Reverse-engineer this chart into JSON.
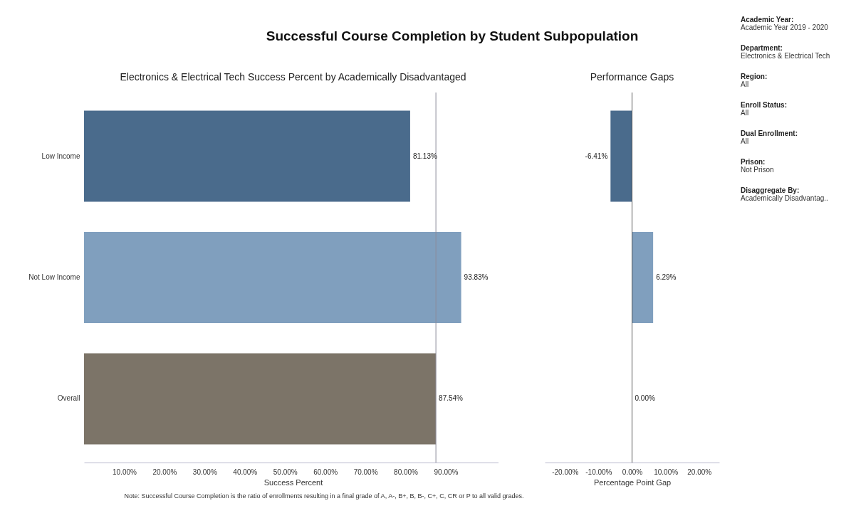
{
  "chart_data": [
    {
      "type": "other",
      "title": "Successful Course Completion by Student Subpopulation",
      "annotations": [
        "Academic Year:",
        "Academic Year 2019 - 2020",
        "Department:",
        "Electronics & Electrical Tech",
        "Region:",
        "All",
        "Enroll Status:",
        "All",
        "Dual Enrollment:",
        "All",
        "Prison:",
        "Not Prison",
        "Disaggregate By:",
        "Academically Disadvantag.."
      ]
    },
    {
      "type": "bar",
      "orientation": "horizontal",
      "title": "Electronics & Electrical Tech Success Percent by Academically Disadvantaged",
      "xlabel": "Success Percent",
      "categories": [
        "Low Income",
        "Not Low Income",
        "Overall"
      ],
      "values": [
        81.13,
        93.83,
        87.54
      ],
      "colors": [
        "#4a6b8c",
        "#809fbe",
        "#7c7468"
      ],
      "value_labels": [
        "81.13%",
        "93.83%",
        "87.54%"
      ],
      "xlim": [
        0,
        104
      ],
      "xticks": [
        {
          "value": 10,
          "label": "10.00%"
        },
        {
          "value": 20,
          "label": "20.00%"
        },
        {
          "value": 30,
          "label": "30.00%"
        },
        {
          "value": 40,
          "label": "40.00%"
        },
        {
          "value": 50,
          "label": "50.00%"
        },
        {
          "value": 60,
          "label": "60.00%"
        },
        {
          "value": 70,
          "label": "70.00%"
        },
        {
          "value": 80,
          "label": "80.00%"
        },
        {
          "value": 90,
          "label": "90.00%"
        }
      ],
      "ref_lines": [
        {
          "axis": "x",
          "value": 87.54,
          "color": "#8a8a99"
        }
      ],
      "annotations": [
        "Note: Successful Course Completion is the ratio of enrollments resulting in a final grade of A, A-, B+, B, B-, C+, C, CR or P to all valid grades."
      ]
    },
    {
      "type": "bar",
      "orientation": "horizontal",
      "title": "Performance Gaps",
      "xlabel": "Percentage Point Gap",
      "categories": [
        null,
        null,
        null
      ],
      "values": [
        -6.41,
        6.29,
        0
      ],
      "colors": [
        "#4a6b8c",
        "#809fbe",
        "#7c7468"
      ],
      "value_labels": [
        "-6.41%",
        "6.29%",
        "0.00%"
      ],
      "xlim": [
        -26,
        26
      ],
      "xticks": [
        {
          "value": -20,
          "label": "-20.00%"
        },
        {
          "value": -10,
          "label": "-10.00%"
        },
        {
          "value": 0,
          "label": "0.00%"
        },
        {
          "value": 10,
          "label": "10.00%"
        },
        {
          "value": 20,
          "label": "20.00%"
        }
      ],
      "ref_lines": [
        {
          "axis": "x",
          "value": 0,
          "color": "#555555"
        }
      ],
      "tick_labels": "x"
    }
  ]
}
